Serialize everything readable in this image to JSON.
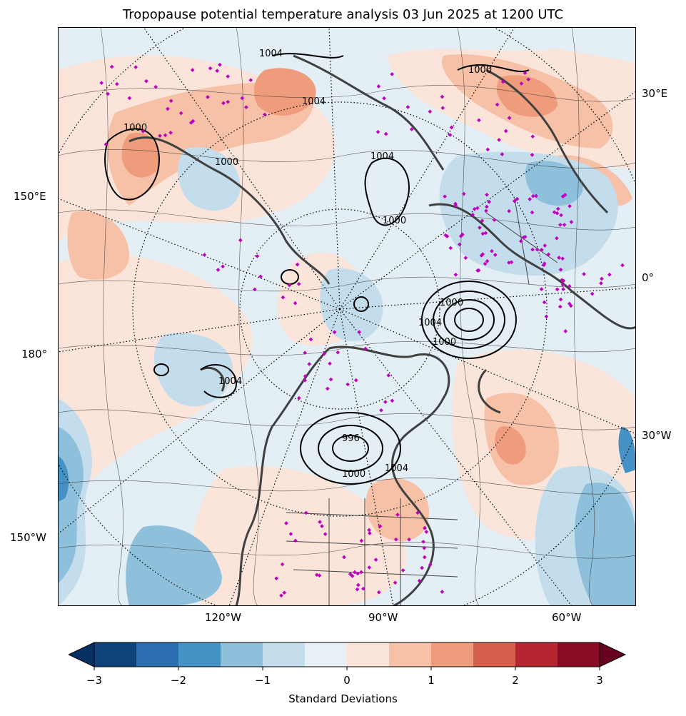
{
  "title": "Tropopause potential temperature analysis 03 Jun 2025 at 1200 UTC",
  "lon_labels": {
    "e30": "30°E",
    "e150": "150°E",
    "deg0": "0°",
    "deg180": "180°",
    "w30": "30°W",
    "w150": "150°W",
    "w120": "120°W",
    "w90": "90°W",
    "w60": "60°W"
  },
  "contour_labels": [
    "1004",
    "1004",
    "1000",
    "1000",
    "1004",
    "1000",
    "1000",
    "1000",
    "1004",
    "1000",
    "996",
    "1004",
    "1000",
    "1004"
  ],
  "colorbar": {
    "label": "Standard Deviations",
    "ticks": [
      "−3",
      "−2",
      "−1",
      "0",
      "1",
      "2",
      "3"
    ],
    "colors": [
      "#053061",
      "#0e427a",
      "#2c6eb0",
      "#4692c4",
      "#8ebfdb",
      "#c3ddec",
      "#e8eff5",
      "#fbe5da",
      "#f6c1a6",
      "#ef9c7c",
      "#d6604d",
      "#b52630",
      "#8a0b25",
      "#67001f"
    ]
  },
  "station_marker_color": "#c000c0",
  "map_layers": [
    "filled-anomaly",
    "potential-temperature-contours",
    "mslp-contours",
    "coastlines",
    "borders",
    "graticule",
    "station-markers"
  ]
}
